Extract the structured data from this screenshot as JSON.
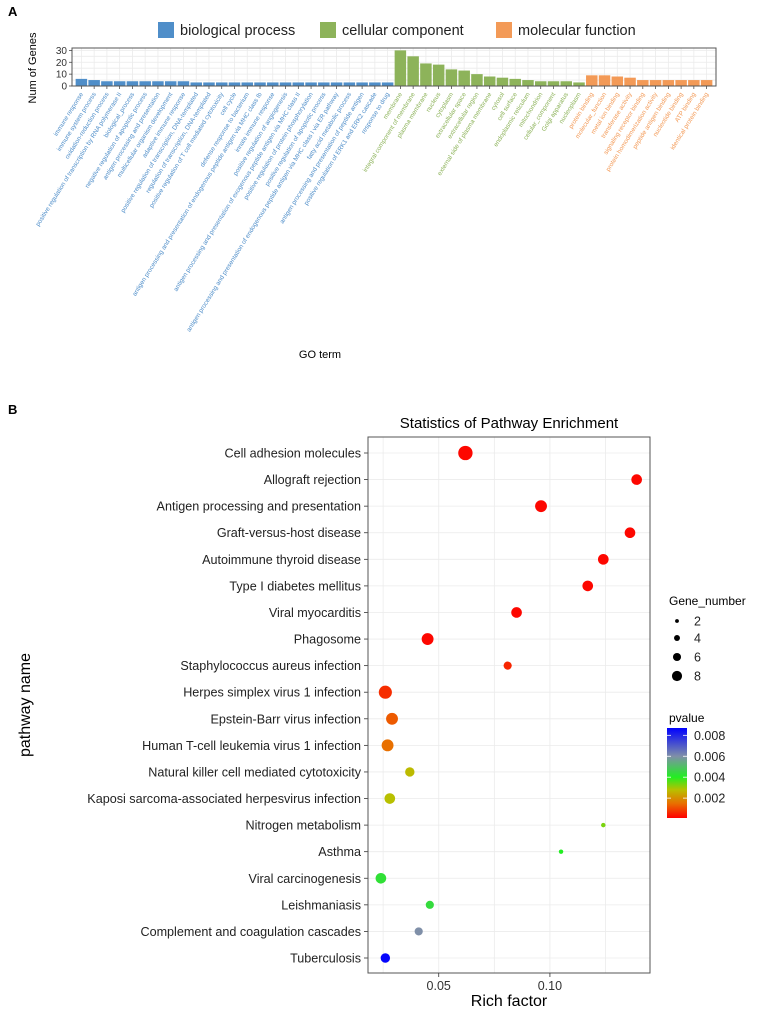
{
  "chart_data": [
    {
      "panel_label": "A",
      "type": "bar",
      "title": "",
      "xlabel": "GO term",
      "ylabel": "Num of Genes",
      "ylim": [
        0,
        32
      ],
      "yticks": [
        "0",
        "10",
        "20",
        "30"
      ],
      "legend_position": "top",
      "legend": [
        {
          "name": "biological process",
          "color": "#4f8ec9"
        },
        {
          "name": "cellular component",
          "color": "#8db35a"
        },
        {
          "name": "molecular function",
          "color": "#f39a57"
        }
      ],
      "series": [
        {
          "name": "biological process",
          "categories": [
            "immune response",
            "immune system process",
            "oxidation-reduction process",
            "positive regulation of transcription by RNA polymerase II",
            "biological_process",
            "negative regulation of apoptotic process",
            "antigen processing and presentation",
            "multicellular organism development",
            "adaptive immune response",
            "positive regulation of transcription, DNA-templated",
            "regulation of transcription, DNA-templated",
            "positive regulation of T cell mediated cytotoxicity",
            "cell cycle",
            "defense response to bacterium",
            "antigen processing and presentation of endogenous peptide antigen via MHC class Ib",
            "innate immune response",
            "positive regulation of angiogenesis",
            "antigen processing and presentation of exogenous peptide antigen via MHC class II",
            "positive regulation of protein phosphorylation",
            "positive regulation of apoptotic process",
            "antigen processing and presentation of endogenous peptide antigen via MHC class I via ER pathway",
            "fatty acid metabolic process",
            "antigen processing and presentation of peptide antigen",
            "positive regulation of ERK1 and ERK2 cascade",
            "response to drug"
          ],
          "values": [
            6,
            5,
            4,
            4,
            4,
            4,
            4,
            4,
            4,
            3,
            3,
            3,
            3,
            3,
            3,
            3,
            3,
            3,
            3,
            3,
            3,
            3,
            3,
            3,
            3
          ]
        },
        {
          "name": "cellular component",
          "categories": [
            "membrane",
            "integral component of membrane",
            "plasma membrane",
            "nucleus",
            "cytoplasm",
            "extracellular space",
            "extracellular region",
            "external side of plasma membrane",
            "cytosol",
            "cell surface",
            "endoplasmic reticulum",
            "mitochondrion",
            "cellular_component",
            "Golgi apparatus",
            "nucleoplasm"
          ],
          "values": [
            30,
            25,
            19,
            18,
            14,
            13,
            10,
            8,
            7,
            6,
            5,
            4,
            4,
            4,
            3
          ]
        },
        {
          "name": "molecular function",
          "categories": [
            "protein binding",
            "molecular_function",
            "metal ion binding",
            "transferase activity",
            "signaling receptor binding",
            "protein homodimerization activity",
            "peptide antigen binding",
            "nucleotide binding",
            "ATP binding",
            "identical protein binding"
          ],
          "values": [
            9,
            9,
            8,
            7,
            5,
            5,
            5,
            5,
            5,
            5
          ]
        }
      ]
    },
    {
      "panel_label": "B",
      "type": "scatter",
      "title": "Statistics of Pathway Enrichment",
      "xlabel": "Rich factor",
      "ylabel": "pathway name",
      "xlim": [
        0.0182,
        0.145
      ],
      "xticks": [
        0.05,
        0.1
      ],
      "xtick_labels": [
        "0.05",
        "0.10"
      ],
      "grid": true,
      "size_legend": {
        "title": "Gene_number",
        "values": [
          2,
          4,
          6,
          8
        ],
        "labels": [
          "2",
          "4",
          "6",
          "8"
        ]
      },
      "color_legend": {
        "title": "pvalue",
        "range": [
          0.0001,
          0.0087
        ],
        "ticks": [
          0.008,
          0.006,
          0.004,
          0.002
        ],
        "labels": [
          "0.008",
          "0.006",
          "0.004",
          "0.002"
        ],
        "stops": [
          [
            0,
            "#ff0000"
          ],
          [
            0.0015,
            "#e87000"
          ],
          [
            0.0028,
            "#b8c000"
          ],
          [
            0.004,
            "#22ee22"
          ],
          [
            0.006,
            "#7f8fa8"
          ],
          [
            0.0087,
            "#0000ff"
          ]
        ]
      },
      "points": [
        {
          "pathway": "Cell adhesion molecules",
          "rich_factor": 0.062,
          "gene_number": 9,
          "pvalue": 0.0001
        },
        {
          "pathway": "Allograft rejection",
          "rich_factor": 0.139,
          "gene_number": 6,
          "pvalue": 0.0001
        },
        {
          "pathway": "Antigen processing and presentation",
          "rich_factor": 0.096,
          "gene_number": 7,
          "pvalue": 0.0001
        },
        {
          "pathway": "Graft-versus-host disease",
          "rich_factor": 0.136,
          "gene_number": 6,
          "pvalue": 0.0001
        },
        {
          "pathway": "Autoimmune thyroid disease",
          "rich_factor": 0.124,
          "gene_number": 6,
          "pvalue": 0.0001
        },
        {
          "pathway": "Type I diabetes mellitus",
          "rich_factor": 0.117,
          "gene_number": 6,
          "pvalue": 0.0001
        },
        {
          "pathway": "Viral myocarditis",
          "rich_factor": 0.085,
          "gene_number": 6,
          "pvalue": 0.0001
        },
        {
          "pathway": "Phagosome",
          "rich_factor": 0.045,
          "gene_number": 7,
          "pvalue": 0.0001
        },
        {
          "pathway": "Staphylococcus aureus infection",
          "rich_factor": 0.081,
          "gene_number": 4,
          "pvalue": 0.0005
        },
        {
          "pathway": "Herpes simplex virus 1 infection",
          "rich_factor": 0.026,
          "gene_number": 8,
          "pvalue": 0.0006
        },
        {
          "pathway": "Epstein-Barr virus infection",
          "rich_factor": 0.029,
          "gene_number": 7,
          "pvalue": 0.0012
        },
        {
          "pathway": "Human T-cell leukemia virus 1 infection",
          "rich_factor": 0.027,
          "gene_number": 7,
          "pvalue": 0.0015
        },
        {
          "pathway": "Natural killer cell mediated cytotoxicity",
          "rich_factor": 0.037,
          "gene_number": 5,
          "pvalue": 0.0027
        },
        {
          "pathway": "Kaposi sarcoma-associated herpesvirus infection",
          "rich_factor": 0.028,
          "gene_number": 6,
          "pvalue": 0.0028
        },
        {
          "pathway": "Nitrogen metabolism",
          "rich_factor": 0.124,
          "gene_number": 1,
          "pvalue": 0.0033
        },
        {
          "pathway": "Asthma",
          "rich_factor": 0.105,
          "gene_number": 1,
          "pvalue": 0.004
        },
        {
          "pathway": "Viral carcinogenesis",
          "rich_factor": 0.024,
          "gene_number": 6,
          "pvalue": 0.0043
        },
        {
          "pathway": "Leishmaniasis",
          "rich_factor": 0.046,
          "gene_number": 4,
          "pvalue": 0.0044
        },
        {
          "pathway": "Complement and coagulation cascades",
          "rich_factor": 0.041,
          "gene_number": 4,
          "pvalue": 0.006
        },
        {
          "pathway": "Tuberculosis",
          "rich_factor": 0.026,
          "gene_number": 5,
          "pvalue": 0.0086
        }
      ]
    }
  ]
}
